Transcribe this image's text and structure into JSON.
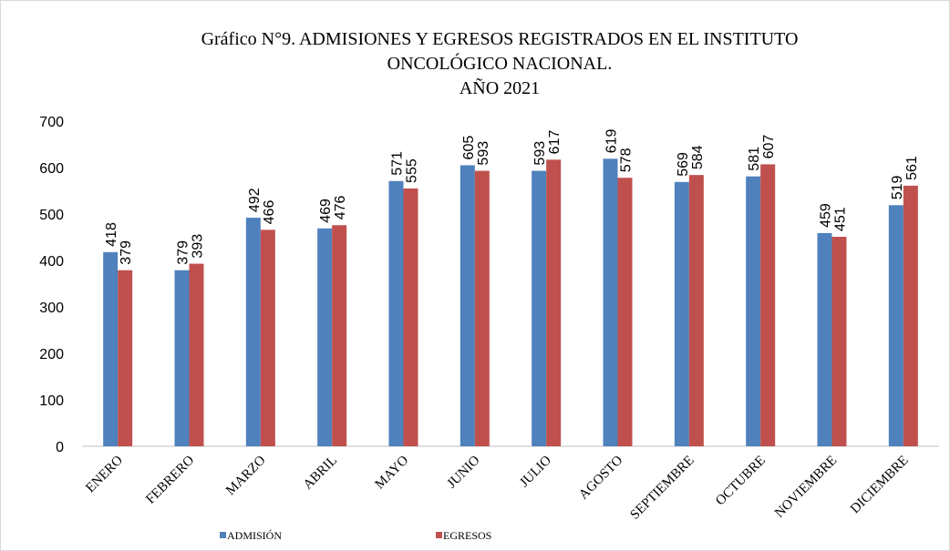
{
  "chart_data": {
    "type": "bar",
    "title": [
      "Gráfico N°9.  ADMISIONES Y EGRESOS REGISTRADOS  EN EL INSTITUTO",
      "ONCOLÓGICO NACIONAL.",
      "AÑO 2021"
    ],
    "categories": [
      "ENERO",
      "FEBRERO",
      "MARZO",
      "ABRIL",
      "MAYO",
      "JUNIO",
      "JULIO",
      "AGOSTO",
      "SEPTIEMBRE",
      "OCTUBRE",
      "NOVIEMBRE",
      "DICIEMBRE"
    ],
    "series": [
      {
        "name": "ADMISIÓN",
        "color": "#4f81bd",
        "values": [
          418,
          379,
          492,
          469,
          571,
          605,
          593,
          619,
          569,
          581,
          459,
          519
        ]
      },
      {
        "name": "EGRESOS",
        "color": "#c0504d",
        "values": [
          379,
          393,
          466,
          476,
          555,
          593,
          617,
          578,
          584,
          607,
          451,
          561
        ]
      }
    ],
    "ylim": [
      0,
      700
    ],
    "yticks": [
      0,
      100,
      200,
      300,
      400,
      500,
      600,
      700
    ],
    "grid": false,
    "legend": "bottom"
  }
}
